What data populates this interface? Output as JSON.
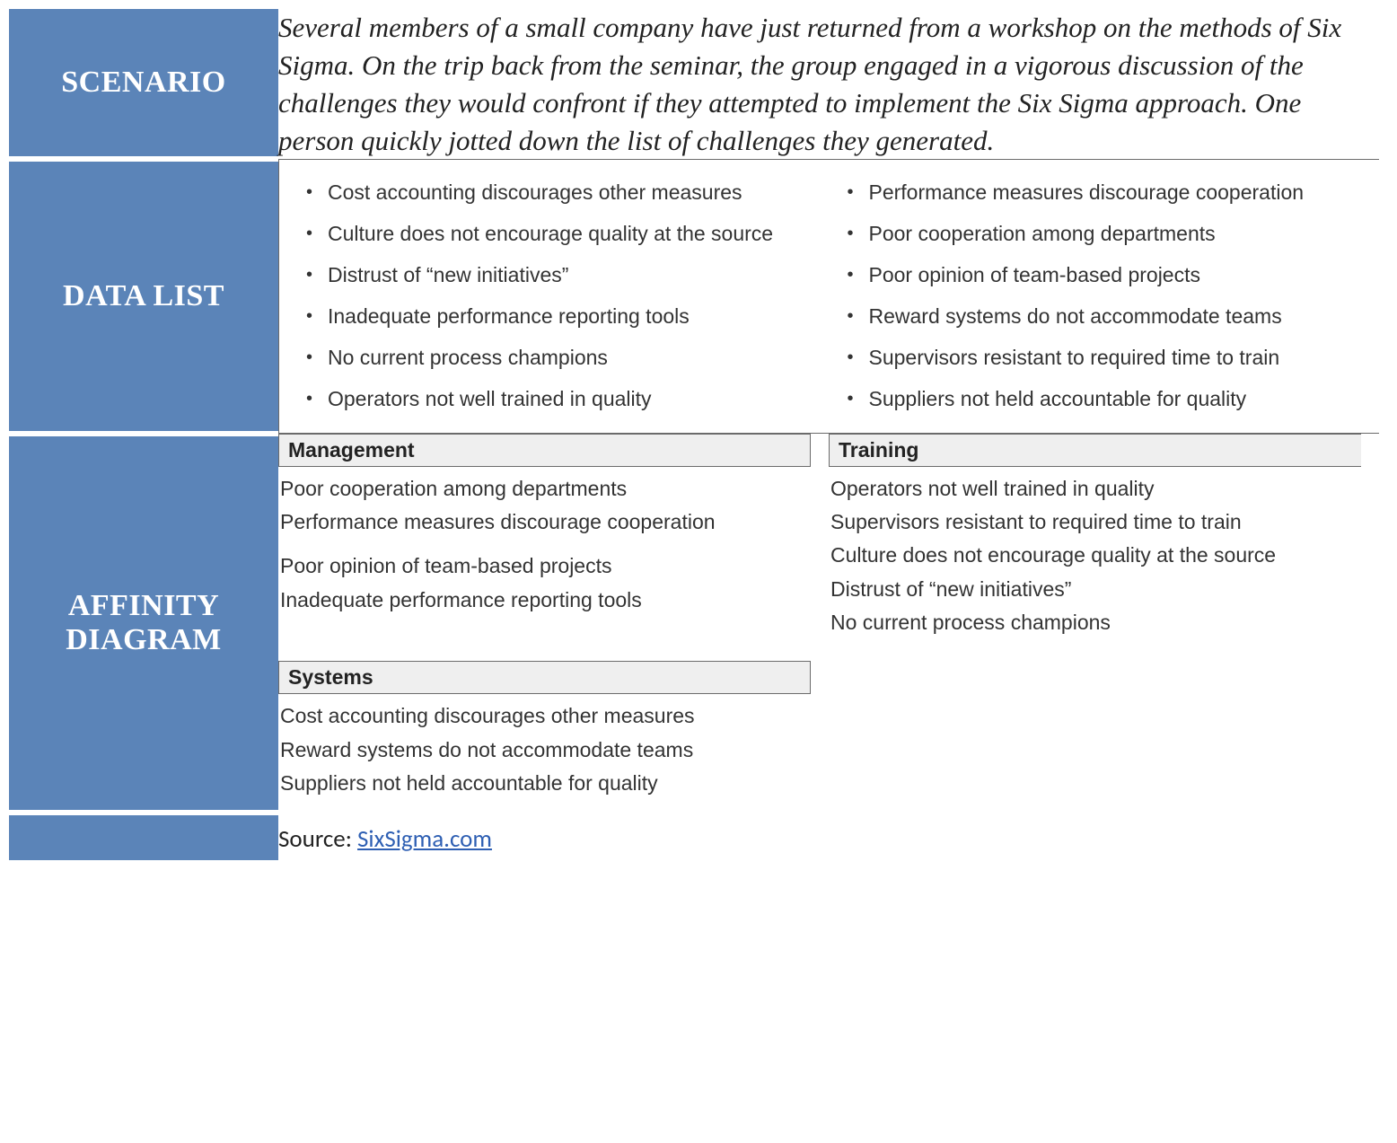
{
  "colors": {
    "label_bg": "#5b84b8",
    "label_text": "#ffffff",
    "body_text": "#222222",
    "list_text": "#333333",
    "box_border": "#6b6b6b",
    "header_bg": "#efefef",
    "link_color": "#2e5fb3",
    "row_divider": "#ffffff"
  },
  "rows": {
    "scenario": {
      "label": "SCENARIO",
      "text": "Several members of a small company have just returned from a workshop on the methods of Six Sigma. On the trip back from the seminar, the group engaged in a vigorous discussion of the challenges they would confront if they attempted to implement the Six Sigma approach. One person quickly jotted down the list of challenges they generated."
    },
    "data_list": {
      "label": "DATA LIST",
      "left": [
        "Cost accounting discourages other measures",
        "Culture does not encourage quality at the source",
        "Distrust of “new initiatives”",
        "Inadequate performance reporting tools",
        "No current process champions",
        "Operators not well trained in quality"
      ],
      "right": [
        "Performance measures discourage cooperation",
        "Poor cooperation among departments",
        "Poor opinion of team-based projects",
        "Reward systems do not accommodate teams",
        "Supervisors resistant to required time to train",
        "Suppliers not held accountable for quality"
      ]
    },
    "affinity": {
      "label": "AFFINITY DIAGRAM",
      "groups": {
        "management": {
          "header": "Management",
          "items_a": [
            "Poor cooperation among departments",
            "Performance measures discourage cooperation"
          ],
          "items_b": [
            "Poor opinion of team-based projects",
            "Inadequate performance reporting tools"
          ]
        },
        "training": {
          "header": "Training",
          "items": [
            "Operators not well trained in quality",
            "Supervisors resistant to required time to train",
            "Culture does not encourage quality at the source",
            "Distrust of “new initiatives”",
            "No current process champions"
          ]
        },
        "systems": {
          "header": "Systems",
          "items": [
            "Cost accounting discourages other measures",
            "Reward systems do not accommodate teams",
            "Suppliers not held accountable for quality"
          ]
        }
      }
    },
    "source": {
      "prefix": "Source: ",
      "link_text": "SixSigma.com"
    }
  }
}
